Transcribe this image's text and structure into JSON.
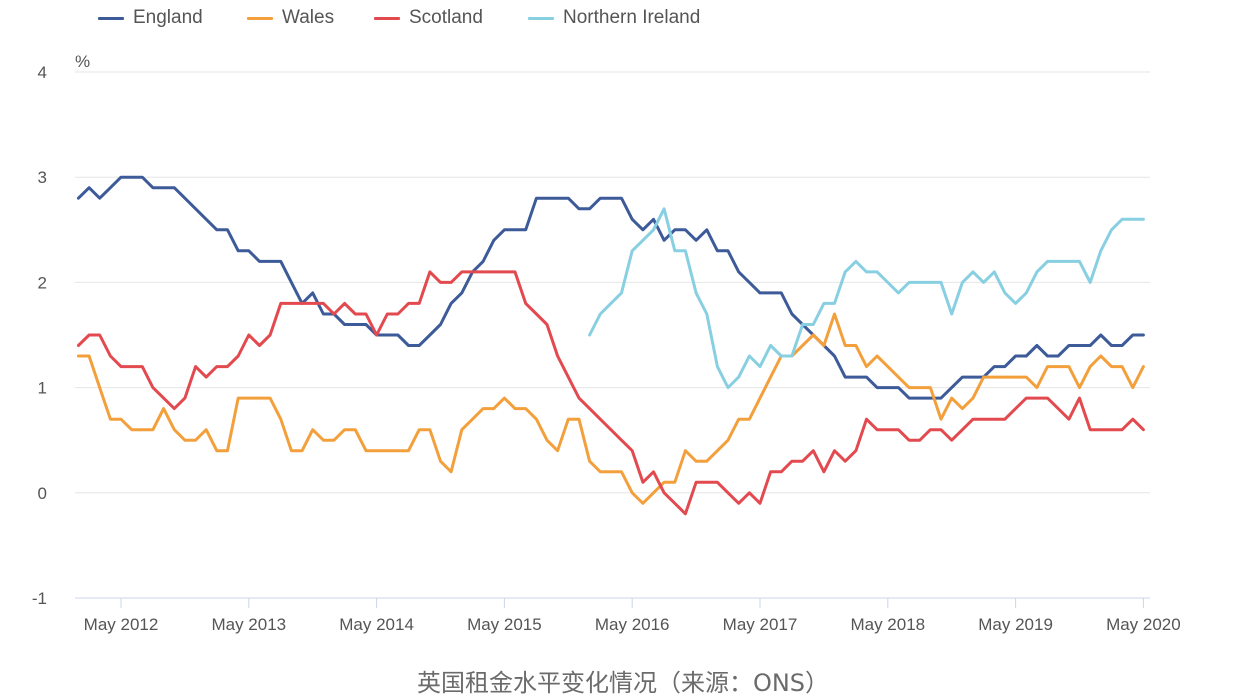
{
  "chart_data": {
    "type": "line",
    "caption": "英国租金水平变化情况（来源：ONS）",
    "ylabel": "%",
    "xlabel": "",
    "ylim": [
      -1,
      4
    ],
    "y_ticks": [
      4,
      3,
      2,
      1,
      0,
      -1
    ],
    "x_ticks": [
      "May 2012",
      "May 2013",
      "May 2014",
      "May 2015",
      "May 2016",
      "May 2017",
      "May 2018",
      "May 2019",
      "May 2020"
    ],
    "grid": true,
    "legend_position": "top",
    "x": [
      "Jan 2012",
      "Feb 2012",
      "Mar 2012",
      "Apr 2012",
      "May 2012",
      "Jun 2012",
      "Jul 2012",
      "Aug 2012",
      "Sep 2012",
      "Oct 2012",
      "Nov 2012",
      "Dec 2012",
      "Jan 2013",
      "Feb 2013",
      "Mar 2013",
      "Apr 2013",
      "May 2013",
      "Jun 2013",
      "Jul 2013",
      "Aug 2013",
      "Sep 2013",
      "Oct 2013",
      "Nov 2013",
      "Dec 2013",
      "Jan 2014",
      "Feb 2014",
      "Mar 2014",
      "Apr 2014",
      "May 2014",
      "Jun 2014",
      "Jul 2014",
      "Aug 2014",
      "Sep 2014",
      "Oct 2014",
      "Nov 2014",
      "Dec 2014",
      "Jan 2015",
      "Feb 2015",
      "Mar 2015",
      "Apr 2015",
      "May 2015",
      "Jun 2015",
      "Jul 2015",
      "Aug 2015",
      "Sep 2015",
      "Oct 2015",
      "Nov 2015",
      "Dec 2015",
      "Jan 2016",
      "Feb 2016",
      "Mar 2016",
      "Apr 2016",
      "May 2016",
      "Jun 2016",
      "Jul 2016",
      "Aug 2016",
      "Sep 2016",
      "Oct 2016",
      "Nov 2016",
      "Dec 2016",
      "Jan 2017",
      "Feb 2017",
      "Mar 2017",
      "Apr 2017",
      "May 2017",
      "Jun 2017",
      "Jul 2017",
      "Aug 2017",
      "Sep 2017",
      "Oct 2017",
      "Nov 2017",
      "Dec 2017",
      "Jan 2018",
      "Feb 2018",
      "Mar 2018",
      "Apr 2018",
      "May 2018",
      "Jun 2018",
      "Jul 2018",
      "Aug 2018",
      "Sep 2018",
      "Oct 2018",
      "Nov 2018",
      "Dec 2018",
      "Jan 2019",
      "Feb 2019",
      "Mar 2019",
      "Apr 2019",
      "May 2019",
      "Jun 2019",
      "Jul 2019",
      "Aug 2019",
      "Sep 2019",
      "Oct 2019",
      "Nov 2019",
      "Dec 2019",
      "Jan 2020",
      "Feb 2020",
      "Mar 2020",
      "Apr 2020",
      "May 2020"
    ],
    "series": [
      {
        "name": "England",
        "color": "#3d5a99",
        "values": [
          2.8,
          2.9,
          2.8,
          2.9,
          3.0,
          3.0,
          3.0,
          2.9,
          2.9,
          2.9,
          2.8,
          2.7,
          2.6,
          2.5,
          2.5,
          2.3,
          2.3,
          2.2,
          2.2,
          2.2,
          2.0,
          1.8,
          1.9,
          1.7,
          1.7,
          1.6,
          1.6,
          1.6,
          1.5,
          1.5,
          1.5,
          1.4,
          1.4,
          1.5,
          1.6,
          1.8,
          1.9,
          2.1,
          2.2,
          2.4,
          2.5,
          2.5,
          2.5,
          2.8,
          2.8,
          2.8,
          2.8,
          2.7,
          2.7,
          2.8,
          2.8,
          2.8,
          2.6,
          2.5,
          2.6,
          2.4,
          2.5,
          2.5,
          2.4,
          2.5,
          2.3,
          2.3,
          2.1,
          2.0,
          1.9,
          1.9,
          1.9,
          1.7,
          1.6,
          1.5,
          1.4,
          1.3,
          1.1,
          1.1,
          1.1,
          1.0,
          1.0,
          1.0,
          0.9,
          0.9,
          0.9,
          0.9,
          1.0,
          1.1,
          1.1,
          1.1,
          1.2,
          1.2,
          1.3,
          1.3,
          1.4,
          1.3,
          1.3,
          1.4,
          1.4,
          1.4,
          1.5,
          1.4,
          1.4,
          1.5,
          1.5
        ]
      },
      {
        "name": "Wales",
        "color": "#f3a03c",
        "values": [
          1.3,
          1.3,
          1.0,
          0.7,
          0.7,
          0.6,
          0.6,
          0.6,
          0.8,
          0.6,
          0.5,
          0.5,
          0.6,
          0.4,
          0.4,
          0.9,
          0.9,
          0.9,
          0.9,
          0.7,
          0.4,
          0.4,
          0.6,
          0.5,
          0.5,
          0.6,
          0.6,
          0.4,
          0.4,
          0.4,
          0.4,
          0.4,
          0.6,
          0.6,
          0.3,
          0.2,
          0.6,
          0.7,
          0.8,
          0.8,
          0.9,
          0.8,
          0.8,
          0.7,
          0.5,
          0.4,
          0.7,
          0.7,
          0.3,
          0.2,
          0.2,
          0.2,
          0.0,
          -0.1,
          0.0,
          0.1,
          0.1,
          0.4,
          0.3,
          0.3,
          0.4,
          0.5,
          0.7,
          0.7,
          0.9,
          1.1,
          1.3,
          1.3,
          1.4,
          1.5,
          1.4,
          1.7,
          1.4,
          1.4,
          1.2,
          1.3,
          1.2,
          1.1,
          1.0,
          1.0,
          1.0,
          0.7,
          0.9,
          0.8,
          0.9,
          1.1,
          1.1,
          1.1,
          1.1,
          1.1,
          1.0,
          1.2,
          1.2,
          1.2,
          1.0,
          1.2,
          1.3,
          1.2,
          1.2,
          1.0,
          1.2
        ]
      },
      {
        "name": "Scotland",
        "color": "#e24a4f",
        "values": [
          1.4,
          1.5,
          1.5,
          1.3,
          1.2,
          1.2,
          1.2,
          1.0,
          0.9,
          0.8,
          0.9,
          1.2,
          1.1,
          1.2,
          1.2,
          1.3,
          1.5,
          1.4,
          1.5,
          1.8,
          1.8,
          1.8,
          1.8,
          1.8,
          1.7,
          1.8,
          1.7,
          1.7,
          1.5,
          1.7,
          1.7,
          1.8,
          1.8,
          2.1,
          2.0,
          2.0,
          2.1,
          2.1,
          2.1,
          2.1,
          2.1,
          2.1,
          1.8,
          1.7,
          1.6,
          1.3,
          1.1,
          0.9,
          0.8,
          0.7,
          0.6,
          0.5,
          0.4,
          0.1,
          0.2,
          0.0,
          -0.1,
          -0.2,
          0.1,
          0.1,
          0.1,
          0.0,
          -0.1,
          0.0,
          -0.1,
          0.2,
          0.2,
          0.3,
          0.3,
          0.4,
          0.2,
          0.4,
          0.3,
          0.4,
          0.7,
          0.6,
          0.6,
          0.6,
          0.5,
          0.5,
          0.6,
          0.6,
          0.5,
          0.6,
          0.7,
          0.7,
          0.7,
          0.7,
          0.8,
          0.9,
          0.9,
          0.9,
          0.8,
          0.7,
          0.9,
          0.6,
          0.6,
          0.6,
          0.6,
          0.7,
          0.6
        ]
      },
      {
        "name": "Northern Ireland",
        "color": "#88cfe2",
        "values": [
          null,
          null,
          null,
          null,
          null,
          null,
          null,
          null,
          null,
          null,
          null,
          null,
          null,
          null,
          null,
          null,
          null,
          null,
          null,
          null,
          null,
          null,
          null,
          null,
          null,
          null,
          null,
          null,
          null,
          null,
          null,
          null,
          null,
          null,
          null,
          null,
          null,
          null,
          null,
          null,
          null,
          null,
          null,
          null,
          null,
          null,
          null,
          null,
          1.5,
          1.7,
          1.8,
          1.9,
          2.3,
          2.4,
          2.5,
          2.7,
          2.3,
          2.3,
          1.9,
          1.7,
          1.2,
          1.0,
          1.1,
          1.3,
          1.2,
          1.4,
          1.3,
          1.3,
          1.6,
          1.6,
          1.8,
          1.8,
          2.1,
          2.2,
          2.1,
          2.1,
          2.0,
          1.9,
          2.0,
          2.0,
          2.0,
          2.0,
          1.7,
          2.0,
          2.1,
          2.0,
          2.1,
          1.9,
          1.8,
          1.9,
          2.1,
          2.2,
          2.2,
          2.2,
          2.2,
          2.0,
          2.3,
          2.5,
          2.6,
          2.6,
          2.6
        ]
      }
    ]
  }
}
